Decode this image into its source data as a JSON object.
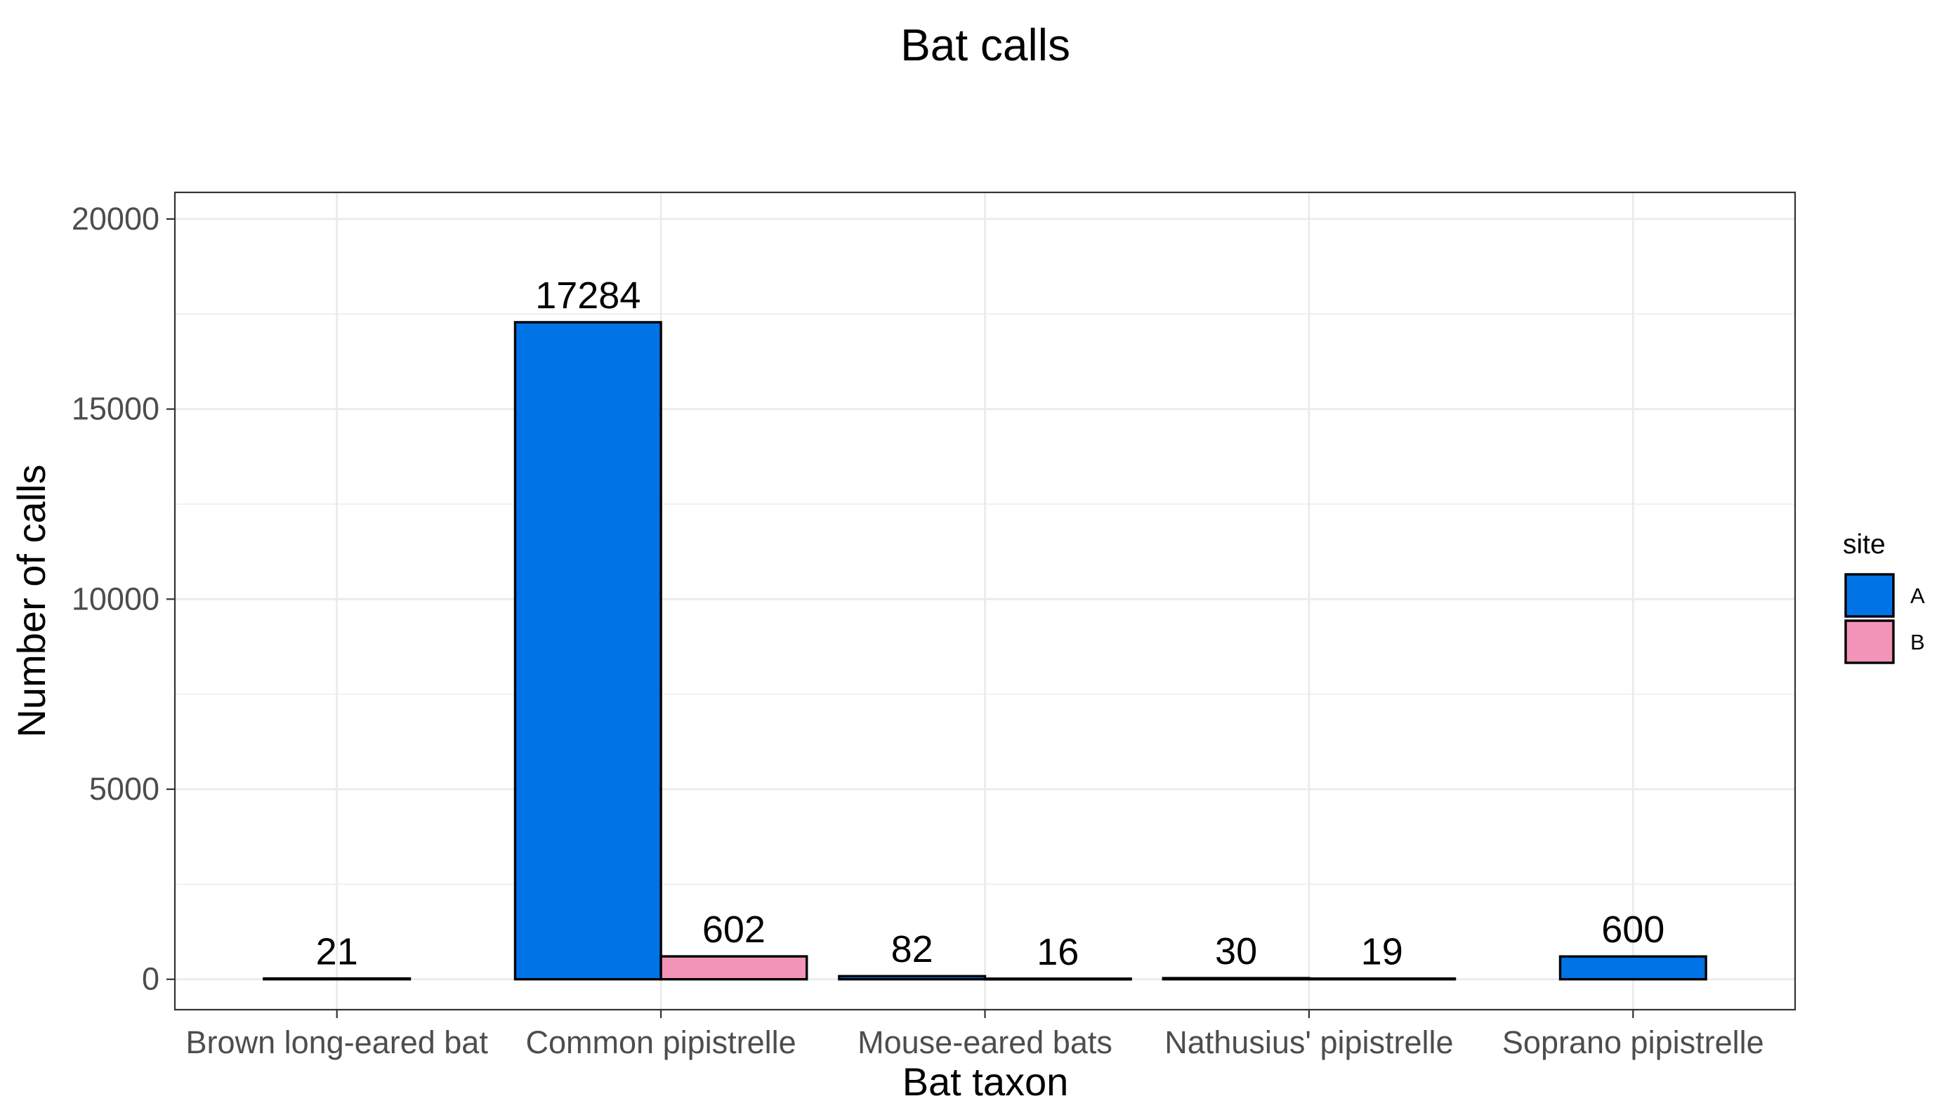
{
  "chart_data": {
    "type": "bar",
    "title": "Bat calls",
    "xlabel": "Bat taxon",
    "ylabel": "Number of calls",
    "categories": [
      "Brown long-eared bat",
      "Common pipistrelle",
      "Mouse-eared bats",
      "Nathusius' pipistrelle",
      "Soprano pipistrelle"
    ],
    "yticks": [
      0,
      5000,
      10000,
      15000,
      20000
    ],
    "ylim": [
      -800,
      20700
    ],
    "grid": true,
    "legend": {
      "title": "site",
      "position": "right"
    },
    "series": [
      {
        "name": "A",
        "color": "#0073E6",
        "values": [
          21,
          17284,
          82,
          30,
          600
        ]
      },
      {
        "name": "B",
        "color": "#F194B8",
        "values": [
          null,
          602,
          16,
          19,
          null
        ]
      }
    ]
  }
}
